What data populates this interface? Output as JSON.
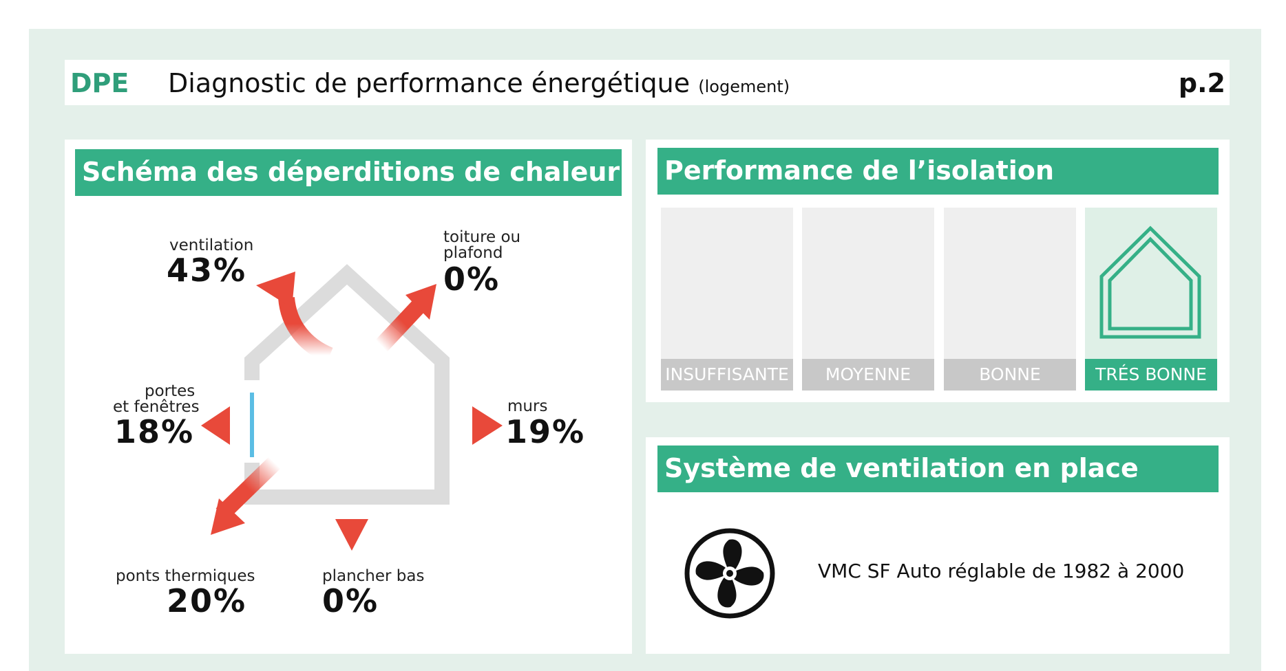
{
  "header": {
    "code": "DPE",
    "title": "Diagnostic de performance énergétique",
    "subtitle": "(logement)",
    "page": "p.2"
  },
  "heat_loss": {
    "title": "Schéma des déperditions de chaleur",
    "items": [
      {
        "label": "ventilation",
        "percent": "43%"
      },
      {
        "label_line1": "toiture ou",
        "label_line2": "plafond",
        "percent": "0%"
      },
      {
        "label_line1": "portes",
        "label_line2": "et fenêtres",
        "percent": "18%"
      },
      {
        "label": "murs",
        "percent": "19%"
      },
      {
        "label": "ponts thermiques",
        "percent": "20%"
      },
      {
        "label": "plancher bas",
        "percent": "0%"
      }
    ],
    "colors": {
      "arrow": "#e8493a",
      "house": "#dcdcdc",
      "window": "#5bbde4"
    }
  },
  "insulation": {
    "title": "Performance de l’isolation",
    "levels": [
      "INSUFFISANTE",
      "MOYENNE",
      "BONNE",
      "TRÉS BONNE"
    ],
    "selected_index": 3,
    "selected_icon": "house-outline-icon",
    "colors": {
      "active": "#35b087",
      "inactive": "#c8c8c8"
    }
  },
  "ventilation": {
    "title": "Système de ventilation en place",
    "icon": "fan-icon",
    "description": "VMC SF Auto réglable de 1982 à 2000"
  }
}
